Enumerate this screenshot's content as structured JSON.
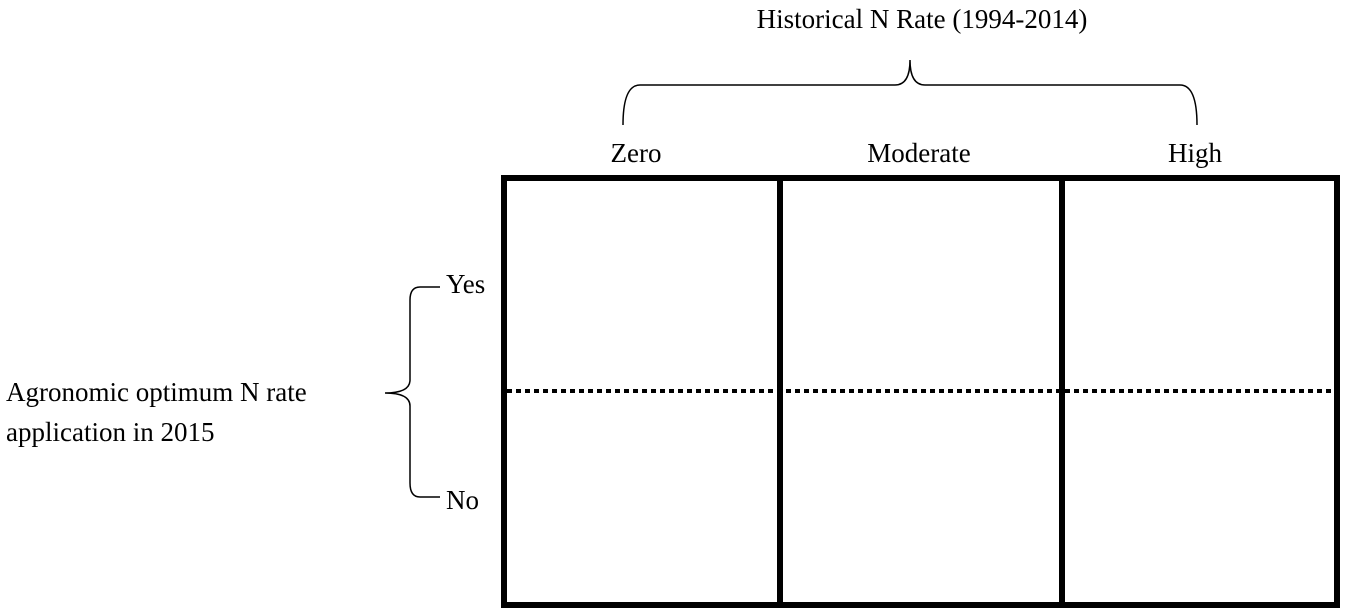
{
  "title": "Historical N Rate (1994-2014)",
  "columns": [
    "Zero",
    "Moderate",
    "High"
  ],
  "row_label": [
    "Agronomic optimum N rate",
    "application in 2015"
  ],
  "rows": [
    "Yes",
    "No"
  ]
}
